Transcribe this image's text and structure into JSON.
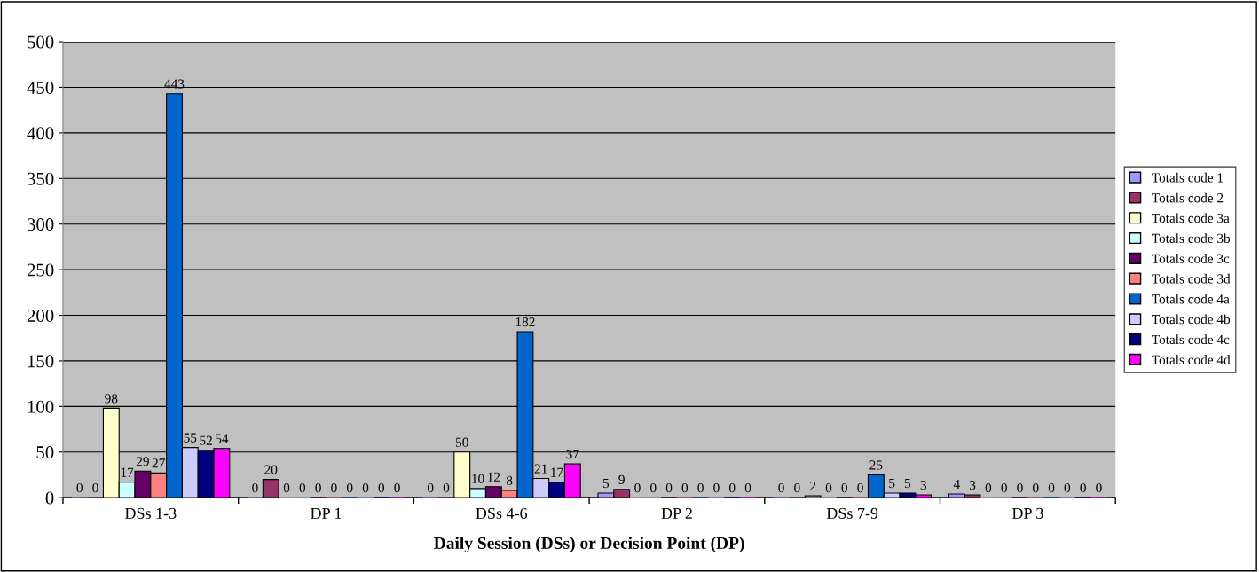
{
  "chart_data": {
    "type": "bar",
    "xlabel": "Daily Session (DSs) or Decision Point (DP)",
    "categories": [
      "DSs 1-3",
      "DP 1",
      "DSs 4-6",
      "DP 2",
      "DSs 7-9",
      "DP 3"
    ],
    "series": [
      {
        "name": "Totals code 1",
        "color": "#9999ff",
        "values": [
          0,
          0,
          0,
          5,
          0,
          4
        ]
      },
      {
        "name": "Totals code 2",
        "color": "#993366",
        "values": [
          0,
          20,
          0,
          9,
          0,
          3
        ]
      },
      {
        "name": "Totals code 3a",
        "color": "#ffffcc",
        "values": [
          98,
          0,
          50,
          0,
          2,
          0
        ]
      },
      {
        "name": "Totals code 3b",
        "color": "#ccffff",
        "values": [
          17,
          0,
          10,
          0,
          0,
          0
        ]
      },
      {
        "name": "Totals code 3c",
        "color": "#660066",
        "values": [
          29,
          0,
          12,
          0,
          0,
          0
        ]
      },
      {
        "name": "Totals code 3d",
        "color": "#ff8080",
        "values": [
          27,
          0,
          8,
          0,
          0,
          0
        ]
      },
      {
        "name": "Totals code 4a",
        "color": "#0066cc",
        "values": [
          443,
          0,
          182,
          0,
          25,
          0
        ]
      },
      {
        "name": "Totals code 4b",
        "color": "#ccccff",
        "values": [
          55,
          0,
          21,
          0,
          5,
          0
        ]
      },
      {
        "name": "Totals code 4c",
        "color": "#000080",
        "values": [
          52,
          0,
          17,
          0,
          5,
          0
        ]
      },
      {
        "name": "Totals code 4d",
        "color": "#ff00ff",
        "values": [
          54,
          0,
          37,
          0,
          3,
          0
        ]
      }
    ],
    "ylim": [
      0,
      500
    ],
    "yticks": [
      0,
      50,
      100,
      150,
      200,
      250,
      300,
      350,
      400,
      450,
      500
    ],
    "grid": "y",
    "legend": "right",
    "data_labels": true
  }
}
